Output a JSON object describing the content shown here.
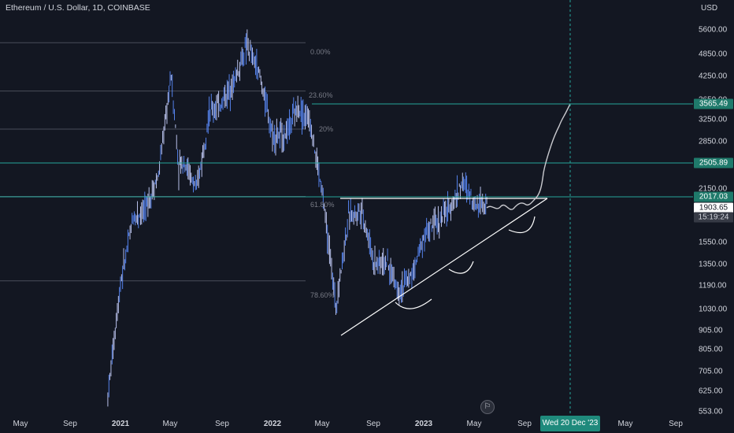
{
  "header": {
    "title": "Ethereum / U.S. Dollar, 1D, COINBASE"
  },
  "price_axis": {
    "currency": "USD",
    "ticks": [
      "5600.00",
      "4850.00",
      "4250.00",
      "3650.00",
      "3250.00",
      "2850.00",
      "2150.00",
      "1550.00",
      "1350.00",
      "1190.00",
      "1030.00",
      "905.00",
      "805.00",
      "705.00",
      "625.00",
      "553.00"
    ],
    "tags": {
      "resistance_high": "3565.49",
      "resistance_mid": "2505.89",
      "resistance_low": "2017.03",
      "last_price": "1903.65",
      "countdown": "15:19:24"
    }
  },
  "time_axis": {
    "ticks": [
      "May",
      "Sep",
      "2021",
      "May",
      "Sep",
      "2022",
      "May",
      "Sep",
      "2023",
      "May",
      "Sep",
      "May",
      "Sep"
    ],
    "crosshair_date": "Wed 20 Dec '23"
  },
  "fibonacci": {
    "levels": [
      "0.00%",
      "23.60%",
      "61.80%",
      "78.60%"
    ],
    "partial": "20%"
  },
  "colors": {
    "background": "#131722",
    "candles": "#2962ff",
    "resistance_line": "#26a69a",
    "drawing": "#ffffff",
    "fib_line": "#4a4e5a"
  },
  "event_icon": "us-flag-icon",
  "chart_data": {
    "type": "line",
    "title": "Ethereum / U.S. Dollar, 1D, COINBASE",
    "ylabel": "USD",
    "y_scale": "log",
    "ylim": [
      520,
      6300
    ],
    "x_ticks": [
      "May",
      "Sep",
      "2021",
      "May",
      "Sep",
      "2022",
      "May",
      "Sep",
      "2023",
      "May",
      "Sep",
      "May",
      "Sep"
    ],
    "series": [
      {
        "x": [
          "2020-12",
          "2021-01",
          "2021-02",
          "2021-03",
          "2021-04",
          "2021-05",
          "2021-05-19",
          "2021-06",
          "2021-07",
          "2021-08",
          "2021-09",
          "2021-10",
          "2021-11",
          "2021-12",
          "2022-01",
          "2022-02",
          "2022-03",
          "2022-04",
          "2022-05",
          "2022-06",
          "2022-07",
          "2022-08",
          "2022-09",
          "2022-10",
          "2022-11",
          "2022-12",
          "2023-01",
          "2023-02",
          "2023-03",
          "2023-04",
          "2023-05",
          "2023-06"
        ],
        "values": [
          580,
          1150,
          1700,
          1800,
          2200,
          4000,
          2300,
          2400,
          2000,
          3200,
          3400,
          3900,
          4800,
          4000,
          2800,
          2800,
          3300,
          3000,
          1900,
          1000,
          1700,
          1800,
          1300,
          1300,
          1100,
          1200,
          1550,
          1650,
          1800,
          2100,
          1850,
          1900
        ]
      }
    ],
    "fib_levels": [
      {
        "label": "0.00%",
        "price": 4870
      },
      {
        "label": "23.60%",
        "price": 3640
      },
      {
        "label": "61.80%",
        "price": 1930
      },
      {
        "label": "78.60%",
        "price": 1160
      }
    ],
    "horizontal_levels": [
      3565.49,
      2505.89,
      2017.03
    ],
    "last_price": 1903.65
  }
}
